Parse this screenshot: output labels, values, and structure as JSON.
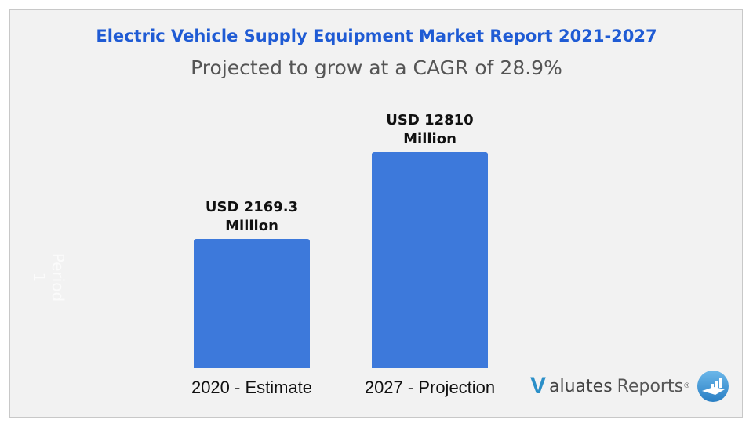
{
  "chart_data": {
    "type": "bar",
    "title": "Electric Vehicle Supply Equipment Market Report 2021-2027",
    "subtitle": "Projected to grow at a CAGR of 28.9%",
    "categories": [
      "2020 - Estimate",
      "2027 - Projection"
    ],
    "values": [
      2169.3,
      12810
    ],
    "data_labels": [
      [
        "USD 2169.3",
        "Million"
      ],
      [
        "USD 12810",
        "Million"
      ]
    ],
    "series_name_watermark": "Period 1",
    "bar_color": "#3d79db",
    "title_color": "#1f5bd4",
    "grid": false,
    "legend": "none"
  },
  "logo": {
    "v": "V",
    "text1": "aluates",
    "text2": "Reports",
    "reg": "®"
  }
}
